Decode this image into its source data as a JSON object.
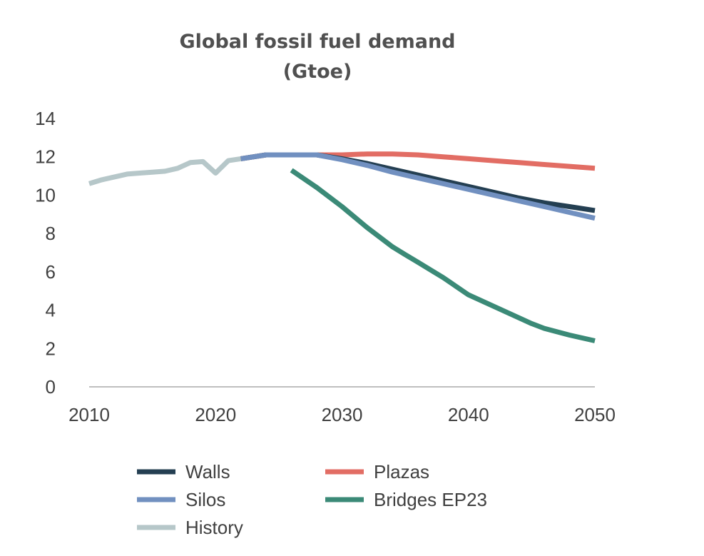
{
  "chart_data": {
    "type": "line",
    "title": "Global fossil fuel demand",
    "subtitle": "(Gtoe)",
    "xlabel": "",
    "ylabel": "",
    "xlim": [
      2010,
      2050
    ],
    "ylim": [
      0,
      14
    ],
    "x_ticks": [
      "2010",
      "2020",
      "2030",
      "2040",
      "2050"
    ],
    "y_ticks": [
      "0",
      "2",
      "4",
      "6",
      "8",
      "10",
      "12",
      "14"
    ],
    "grid": false,
    "legend_position": "bottom",
    "series": [
      {
        "name": "Walls",
        "color": "#243f52",
        "x": [
          2022,
          2024,
          2026,
          2028,
          2030,
          2032,
          2034,
          2036,
          2038,
          2040,
          2042,
          2044,
          2046,
          2048,
          2050
        ],
        "y": [
          11.9,
          12.1,
          12.1,
          12.1,
          11.9,
          11.65,
          11.35,
          11.05,
          10.75,
          10.45,
          10.15,
          9.85,
          9.6,
          9.4,
          9.2
        ]
      },
      {
        "name": "Plazas",
        "color": "#e26d64",
        "x": [
          2022,
          2024,
          2026,
          2028,
          2030,
          2032,
          2034,
          2036,
          2038,
          2040,
          2042,
          2044,
          2046,
          2048,
          2050
        ],
        "y": [
          11.9,
          12.1,
          12.1,
          12.1,
          12.1,
          12.15,
          12.15,
          12.1,
          12.0,
          11.9,
          11.8,
          11.7,
          11.6,
          11.5,
          11.4
        ]
      },
      {
        "name": "Silos",
        "color": "#7190c0",
        "x": [
          2022,
          2024,
          2026,
          2028,
          2030,
          2032,
          2034,
          2036,
          2038,
          2040,
          2042,
          2044,
          2046,
          2048,
          2050
        ],
        "y": [
          11.9,
          12.1,
          12.1,
          12.1,
          11.85,
          11.55,
          11.2,
          10.9,
          10.6,
          10.3,
          10.0,
          9.7,
          9.4,
          9.1,
          8.8
        ]
      },
      {
        "name": "Bridges EP23",
        "color": "#3b8a77",
        "x": [
          2026,
          2028,
          2030,
          2032,
          2034,
          2035,
          2036,
          2038,
          2040,
          2042,
          2044,
          2045,
          2046,
          2048,
          2050
        ],
        "y": [
          11.3,
          10.4,
          9.4,
          8.3,
          7.3,
          6.9,
          6.5,
          5.7,
          4.8,
          4.2,
          3.6,
          3.3,
          3.05,
          2.7,
          2.4
        ]
      },
      {
        "name": "History",
        "color": "#b6c7c9",
        "x": [
          2010,
          2011,
          2012,
          2013,
          2014,
          2015,
          2016,
          2017,
          2018,
          2019,
          2020,
          2021,
          2022
        ],
        "y": [
          10.6,
          10.8,
          10.95,
          11.1,
          11.15,
          11.2,
          11.25,
          11.4,
          11.7,
          11.75,
          11.15,
          11.8,
          11.9
        ]
      }
    ]
  }
}
